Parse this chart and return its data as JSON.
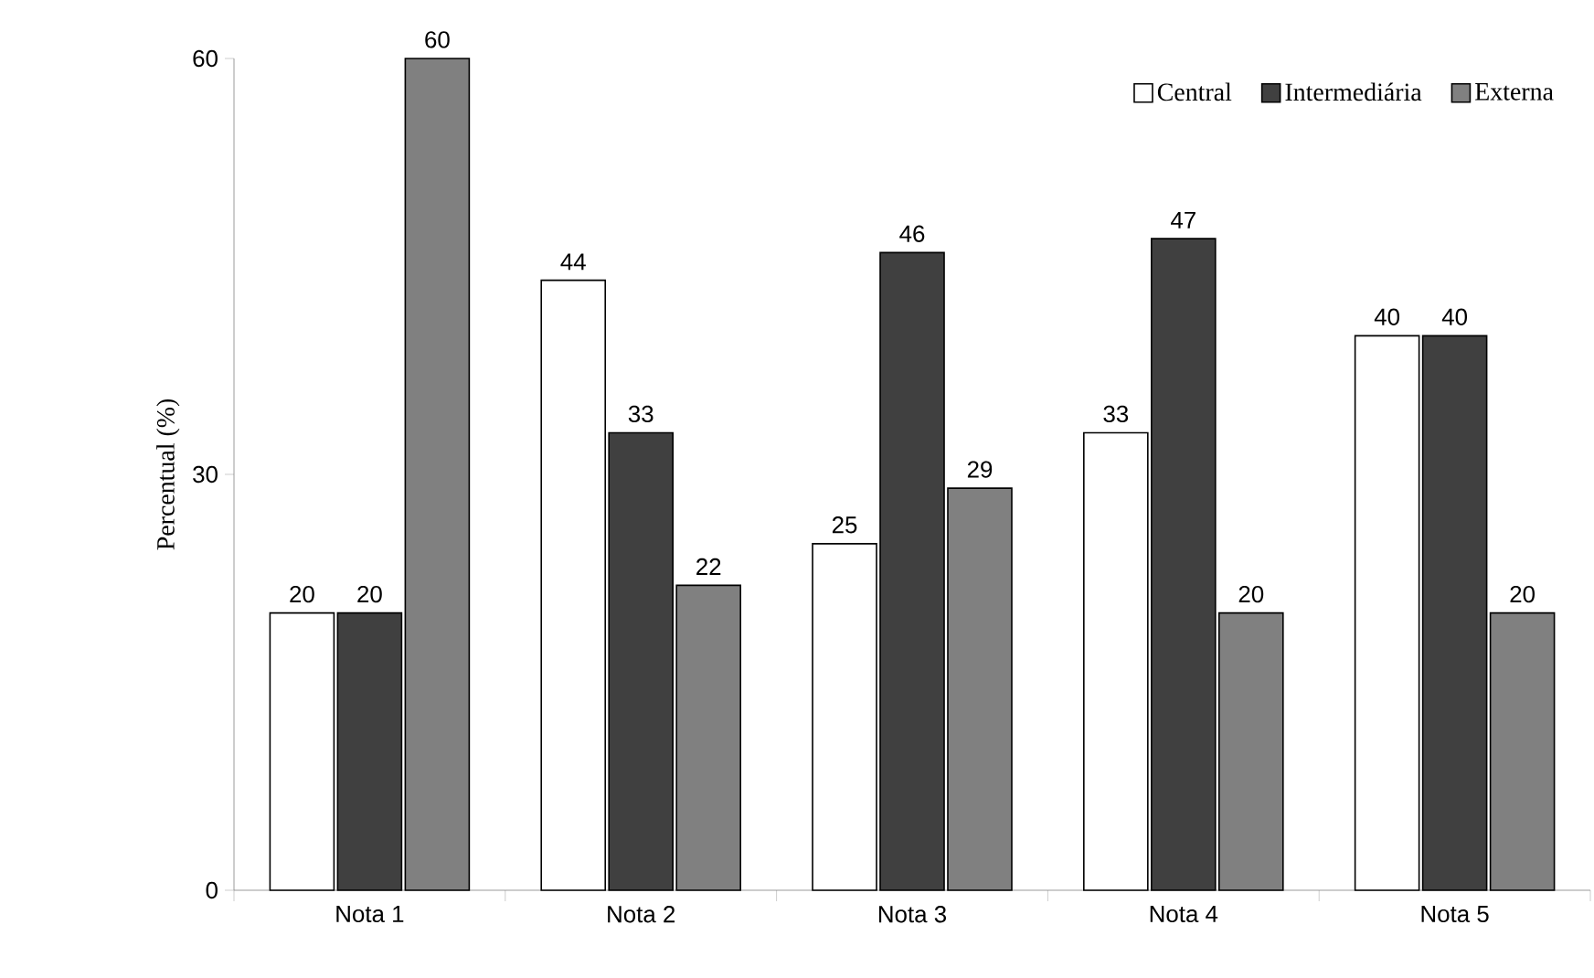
{
  "chart_data": {
    "type": "bar",
    "ylabel": "Percentual (%)",
    "categories": [
      "Nota 1",
      "Nota 2",
      "Nota 3",
      "Nota 4",
      "Nota 5"
    ],
    "series": [
      {
        "name": "Central",
        "color": "#ffffff",
        "values": [
          20,
          44,
          25,
          33,
          40
        ]
      },
      {
        "name": "Intermediária",
        "color": "#404040",
        "values": [
          20,
          33,
          46,
          47,
          40
        ]
      },
      {
        "name": "Externa",
        "color": "#808080",
        "values": [
          60,
          22,
          29,
          20,
          20
        ]
      }
    ],
    "ylim": [
      0,
      60
    ],
    "yticks": [
      0,
      30,
      60
    ],
    "data_labels": true,
    "legend": "top right",
    "grid": false
  }
}
